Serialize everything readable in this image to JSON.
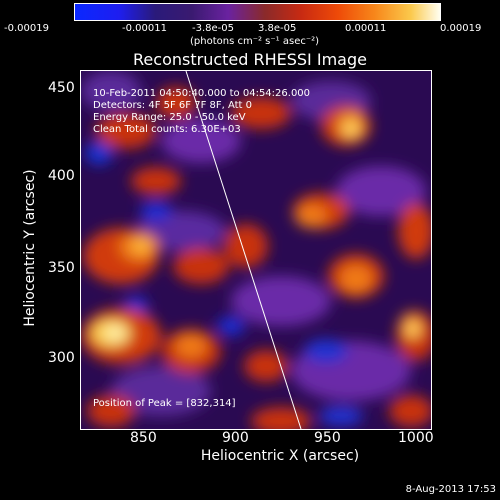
{
  "colorbar": {
    "ticks": [
      "-0.00019",
      "-0.00011",
      "-3.8e-05",
      "3.8e-05",
      "0.00011",
      "0.00019"
    ],
    "unit_label": "(photons cm⁻² s⁻¹ asec⁻²)"
  },
  "title": "Reconstructed RHESSI Image",
  "info": {
    "line1": "10-Feb-2011 04:50:40.000 to 04:54:26.000",
    "line2": "Detectors: 4F 5F 6F 7F 8F, Att 0",
    "line3": "Energy Range: 25.0 - 50.0 keV",
    "line4": "Clean     Total counts: 6.30E+03",
    "peak": "Position of Peak = [832,314]"
  },
  "axes": {
    "xlabel": "Heliocentric X (arcsec)",
    "ylabel": "Heliocentric Y (arcsec)",
    "xticks": [
      "850",
      "900",
      "950",
      "1000"
    ],
    "yticks": [
      "450",
      "400",
      "350",
      "300"
    ]
  },
  "timestamp": "8-Aug-2013 17:53",
  "colors": {
    "background": "#2a0a52",
    "peak_hot": "#fff2a0",
    "limb_line": "#ffffff"
  }
}
